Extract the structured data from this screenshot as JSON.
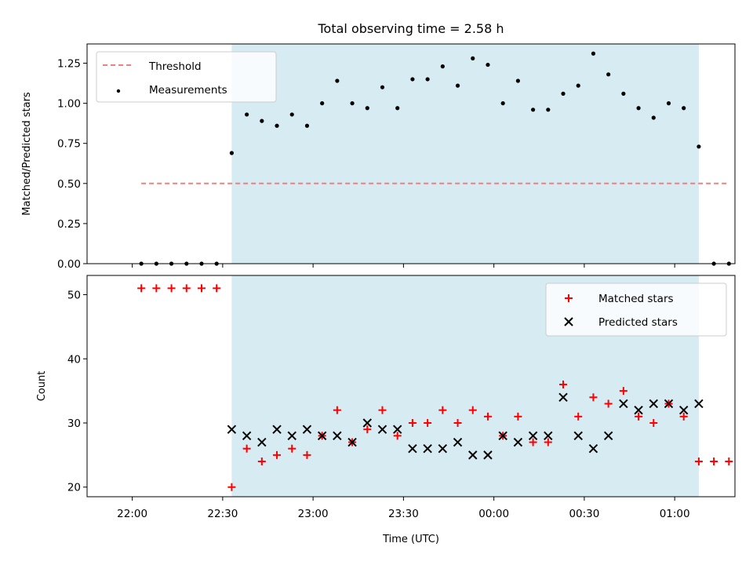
{
  "chart_data": [
    {
      "type": "scatter",
      "title": "Total observing time = 2.58 h",
      "xlabel": "",
      "ylabel": "Matched/Predicted stars",
      "ylim": [
        0,
        1.37
      ],
      "yticks": [
        "0.00",
        "0.25",
        "0.50",
        "0.75",
        "1.00",
        "1.25"
      ],
      "grid": false,
      "legend": "top-left",
      "colors": {
        "threshold": "#f08080",
        "measurements": "#000000",
        "shade": "#add8e6"
      },
      "shaded_span": [
        "22:33",
        "01:08"
      ],
      "threshold": {
        "name": "Threshold",
        "value": 0.5,
        "x": [
          "22:03",
          "01:18"
        ]
      },
      "series": [
        {
          "name": "Measurements",
          "x": [
            "22:03",
            "22:08",
            "22:13",
            "22:18",
            "22:23",
            "22:28",
            "22:33",
            "22:38",
            "22:43",
            "22:48",
            "22:53",
            "22:58",
            "23:03",
            "23:08",
            "23:13",
            "23:18",
            "23:23",
            "23:28",
            "23:33",
            "23:38",
            "23:43",
            "23:48",
            "23:53",
            "23:58",
            "00:03",
            "00:08",
            "00:13",
            "00:18",
            "00:23",
            "00:28",
            "00:33",
            "00:38",
            "00:43",
            "00:48",
            "00:53",
            "00:58",
            "01:03",
            "01:08",
            "01:13",
            "01:18"
          ],
          "values": [
            0,
            0,
            0,
            0,
            0,
            0,
            0.69,
            0.93,
            0.89,
            0.86,
            0.93,
            0.86,
            1.0,
            1.14,
            1.0,
            0.97,
            1.1,
            0.97,
            1.15,
            1.15,
            1.23,
            1.11,
            1.28,
            1.24,
            1.0,
            1.14,
            0.96,
            0.96,
            1.06,
            1.11,
            1.31,
            1.18,
            1.06,
            0.97,
            0.91,
            1.0,
            0.97,
            0.73,
            0,
            0
          ]
        }
      ]
    },
    {
      "type": "scatter",
      "title": "",
      "xlabel": "Time (UTC)",
      "ylabel": "Count",
      "ylim": [
        18.5,
        53
      ],
      "yticks": [
        "20",
        "30",
        "40",
        "50"
      ],
      "xticks": [
        "22:00",
        "22:30",
        "23:00",
        "23:30",
        "00:00",
        "00:30",
        "01:00"
      ],
      "grid": false,
      "legend": "top-right",
      "colors": {
        "matched": "#ff0000",
        "predicted": "#000000",
        "shade": "#add8e6"
      },
      "shaded_span": [
        "22:33",
        "01:08"
      ],
      "series": [
        {
          "name": "Matched stars",
          "x": [
            "22:03",
            "22:08",
            "22:13",
            "22:18",
            "22:23",
            "22:28",
            "22:33",
            "22:38",
            "22:43",
            "22:48",
            "22:53",
            "22:58",
            "23:03",
            "23:08",
            "23:13",
            "23:18",
            "23:23",
            "23:28",
            "23:33",
            "23:38",
            "23:43",
            "23:48",
            "23:53",
            "23:58",
            "00:03",
            "00:08",
            "00:13",
            "00:18",
            "00:23",
            "00:28",
            "00:33",
            "00:38",
            "00:43",
            "00:48",
            "00:53",
            "00:58",
            "01:03",
            "01:08",
            "01:13",
            "01:18"
          ],
          "values": [
            51,
            51,
            51,
            51,
            51,
            51,
            20,
            26,
            24,
            25,
            26,
            25,
            28,
            32,
            27,
            29,
            32,
            28,
            30,
            30,
            32,
            30,
            32,
            31,
            28,
            31,
            27,
            27,
            36,
            31,
            34,
            33,
            35,
            31,
            30,
            33,
            31,
            24,
            24,
            24
          ]
        },
        {
          "name": "Predicted stars",
          "x": [
            "22:33",
            "22:38",
            "22:43",
            "22:48",
            "22:53",
            "22:58",
            "23:03",
            "23:08",
            "23:13",
            "23:18",
            "23:23",
            "23:28",
            "23:33",
            "23:38",
            "23:43",
            "23:48",
            "23:53",
            "23:58",
            "00:03",
            "00:08",
            "00:13",
            "00:18",
            "00:23",
            "00:28",
            "00:33",
            "00:38",
            "00:43",
            "00:48",
            "00:53",
            "00:58",
            "01:03",
            "01:08"
          ],
          "values": [
            29,
            28,
            27,
            29,
            28,
            29,
            28,
            28,
            27,
            30,
            29,
            29,
            26,
            26,
            26,
            27,
            25,
            25,
            28,
            27,
            28,
            28,
            34,
            28,
            26,
            28,
            33,
            32,
            33,
            33,
            32,
            33
          ]
        }
      ]
    }
  ]
}
